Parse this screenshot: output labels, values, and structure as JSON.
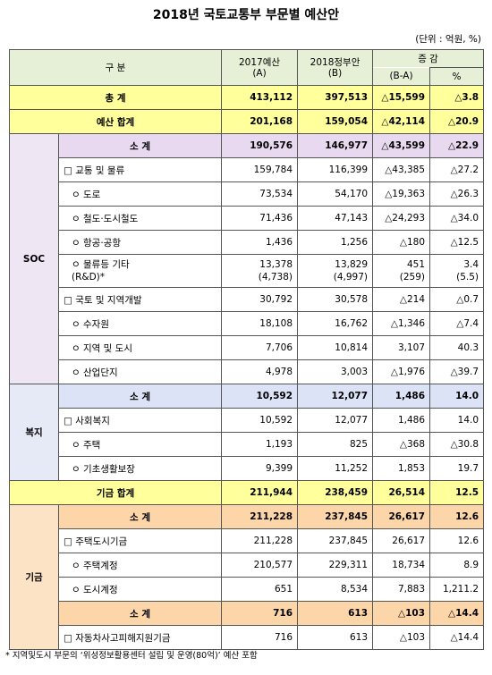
{
  "title": "2018년 국토교통부 부문별 예산안",
  "unit": "(단위 : 억원, %)",
  "header": {
    "label": "구 분",
    "a": [
      "2017예산",
      "(A)"
    ],
    "b": [
      "2018정부안",
      "(B)"
    ],
    "diff": "증 감",
    "diff_sub": "(B-A)",
    "pct": "%"
  },
  "table": {
    "sections": [
      {
        "color": "#ffff9c",
        "rows": [
          {
            "label": "총 계",
            "cells": [
              "413,112",
              "397,513",
              "△15,599",
              "△3.8"
            ]
          },
          {
            "label": "예산 합계",
            "cells": [
              "201,168",
              "159,054",
              "△42,114",
              "△20.9"
            ]
          }
        ]
      },
      {
        "group": "SOC",
        "color": "#e9d9f0",
        "rows": [
          {
            "label": "소 계",
            "cells": [
              "190,576",
              "146,977",
              "△43,599",
              "△22.9"
            ]
          },
          {
            "label": "□ 교통 및 물류",
            "cells": [
              "159,784",
              "116,399",
              "△43,385",
              "△27.2"
            ]
          },
          {
            "label": "ㅇ 도로",
            "cells": [
              "73,534",
              "54,170",
              "△19,363",
              "△26.3"
            ]
          },
          {
            "label": "ㅇ 철도·도시철도",
            "cells": [
              "71,436",
              "47,143",
              "△24,293",
              "△34.0"
            ]
          },
          {
            "label": "ㅇ 항공·공항",
            "cells": [
              "1,436",
              "1,256",
              "△180",
              "△12.5"
            ]
          },
          {
            "label": [
              "ㅇ 물류등 기타",
              "(R&D)*"
            ],
            "cells": [
              [
                "13,378",
                "(4,738)"
              ],
              [
                "13,829",
                "(4,997)"
              ],
              [
                "451",
                "(259)"
              ],
              [
                "3.4",
                "(5.5)"
              ]
            ]
          },
          {
            "label": "□ 국토 및 지역개발",
            "cells": [
              "30,792",
              "30,578",
              "△214",
              "△0.7"
            ]
          },
          {
            "label": "ㅇ 수자원",
            "cells": [
              "18,108",
              "16,762",
              "△1,346",
              "△7.4"
            ]
          },
          {
            "label": "ㅇ 지역 및 도시",
            "cells": [
              "7,706",
              "10,814",
              "3,107",
              "40.3"
            ]
          },
          {
            "label": "ㅇ 산업단지",
            "cells": [
              "4,978",
              "3,003",
              "△1,976",
              "△39.7"
            ]
          }
        ]
      },
      {
        "group": "복지",
        "color": "#dde3f6",
        "rows": [
          {
            "label": "소 계",
            "cells": [
              "10,592",
              "12,077",
              "1,486",
              "14.0"
            ]
          },
          {
            "label": "□ 사회복지",
            "cells": [
              "10,592",
              "12,077",
              "1,486",
              "14.0"
            ]
          },
          {
            "label": "ㅇ 주택",
            "cells": [
              "1,193",
              "825",
              "△368",
              "△30.8"
            ]
          },
          {
            "label": "ㅇ 기초생활보장",
            "cells": [
              "9,399",
              "11,252",
              "1,853",
              "19.7"
            ]
          }
        ]
      },
      {
        "color": "#ffff9c",
        "rows": [
          {
            "label": "기금 합계",
            "cells": [
              "211,944",
              "238,459",
              "26,514",
              "12.5"
            ]
          }
        ]
      },
      {
        "group": "기금",
        "color": "#fcd6a9",
        "rows": [
          {
            "label": "소 계",
            "cells": [
              "211,228",
              "237,845",
              "26,617",
              "12.6"
            ]
          },
          {
            "label": "□ 주택도시기금",
            "cells": [
              "211,228",
              "237,845",
              "26,617",
              "12.6"
            ]
          },
          {
            "label": "ㅇ 주택계정",
            "cells": [
              "210,577",
              "229,311",
              "18,734",
              "8.9"
            ]
          },
          {
            "label": "ㅇ 도시계정",
            "cells": [
              "651",
              "8,534",
              "7,883",
              "1,211.2"
            ]
          },
          {
            "label": "소 계",
            "cells": [
              "716",
              "613",
              "△103",
              "△14.4"
            ]
          },
          {
            "label": "□ 자동차사고피해지원기금",
            "cells": [
              "716",
              "613",
              "△103",
              "△14.4"
            ]
          }
        ]
      }
    ]
  },
  "footnote": "* 지역및도시 부문의 ‘위성정보활용센터 설립 및 운영(80억)’ 예산 포함"
}
